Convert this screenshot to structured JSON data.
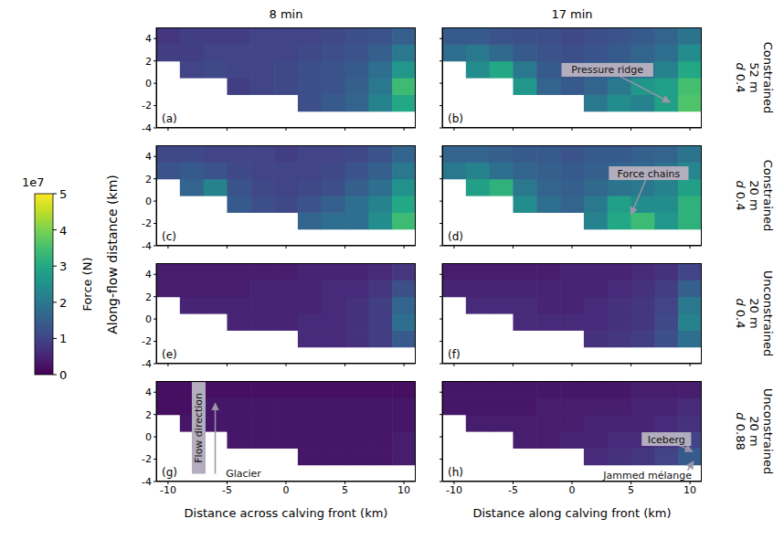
{
  "chart_data": {
    "type": "heatmap",
    "columns": [
      "8 min",
      "17 min"
    ],
    "row_titles": [
      [
        "Constrained",
        "52 m",
        "d 0.4"
      ],
      [
        "Constrained",
        "20 m",
        "d 0.4"
      ],
      [
        "Unconstrained",
        "20 m",
        "d 0.4"
      ],
      [
        "Unconstrained",
        "20 m",
        "d 0.88"
      ]
    ],
    "y_label": "Along-flow distance (km)",
    "xlim": [
      -11,
      11
    ],
    "xticks": [
      -10,
      -5,
      0,
      5,
      10
    ],
    "ylim": [
      -4,
      5
    ],
    "yticks": [
      -4,
      -2,
      0,
      2,
      4
    ],
    "x_edges": [
      -11,
      -9,
      -7,
      -5,
      -3,
      -1,
      1,
      3,
      5,
      7,
      9,
      11
    ],
    "y_edges": [
      -4,
      -2.5,
      -1,
      0.5,
      2,
      3.5,
      5
    ],
    "colorbar": {
      "label": "Force (N)",
      "offset_label": "1e7",
      "range": [
        0,
        5
      ],
      "ticks": [
        0,
        1,
        2,
        3,
        4,
        5
      ]
    },
    "panels": [
      {
        "label": "(a)",
        "tick_labels": "y",
        "annotations": [],
        "cells": [
          [
            null,
            null,
            null,
            null,
            null,
            null,
            null,
            null,
            null,
            null,
            null
          ],
          [
            null,
            null,
            null,
            null,
            null,
            null,
            1.2,
            1.4,
            1.6,
            2.2,
            3.0
          ],
          [
            null,
            null,
            null,
            0.9,
            1.0,
            1.1,
            1.2,
            1.3,
            1.5,
            2.0,
            3.4
          ],
          [
            null,
            1.0,
            1.1,
            1.0,
            1.0,
            1.1,
            1.2,
            1.3,
            1.4,
            1.8,
            2.6
          ],
          [
            0.9,
            0.9,
            1.0,
            1.0,
            1.0,
            1.0,
            1.1,
            1.2,
            1.3,
            1.5,
            2.0
          ],
          [
            0.8,
            0.9,
            0.9,
            0.9,
            1.0,
            1.0,
            1.0,
            1.1,
            1.2,
            1.3,
            1.5
          ]
        ]
      },
      {
        "label": "(b)",
        "tick_labels": false,
        "annotations": [
          "Pressure ridge"
        ],
        "cells": [
          [
            null,
            null,
            null,
            null,
            null,
            null,
            null,
            null,
            null,
            null,
            null
          ],
          [
            null,
            null,
            null,
            null,
            null,
            null,
            2.0,
            2.4,
            2.2,
            2.8,
            3.6
          ],
          [
            null,
            null,
            null,
            2.6,
            1.6,
            1.4,
            1.6,
            2.0,
            2.6,
            2.8,
            3.5
          ],
          [
            null,
            2.4,
            3.0,
            2.0,
            1.4,
            1.3,
            1.4,
            1.6,
            1.8,
            2.2,
            3.0
          ],
          [
            1.8,
            2.0,
            1.7,
            1.4,
            1.3,
            1.2,
            1.3,
            1.4,
            1.6,
            1.8,
            2.4
          ],
          [
            1.4,
            1.4,
            1.3,
            1.2,
            1.2,
            1.1,
            1.2,
            1.3,
            1.4,
            1.6,
            1.9
          ]
        ]
      },
      {
        "label": "(c)",
        "tick_labels": "y",
        "annotations": [],
        "cells": [
          [
            null,
            null,
            null,
            null,
            null,
            null,
            null,
            null,
            null,
            null,
            null
          ],
          [
            null,
            null,
            null,
            null,
            null,
            null,
            1.6,
            1.8,
            1.8,
            2.4,
            3.4
          ],
          [
            null,
            null,
            null,
            1.4,
            1.2,
            1.1,
            1.3,
            1.5,
            1.8,
            2.2,
            3.0
          ],
          [
            null,
            1.6,
            2.2,
            1.3,
            1.1,
            1.0,
            1.1,
            1.2,
            1.5,
            1.8,
            2.5
          ],
          [
            1.3,
            1.4,
            1.3,
            1.1,
            1.0,
            1.0,
            1.0,
            1.1,
            1.3,
            1.5,
            2.0
          ],
          [
            1.1,
            1.1,
            1.0,
            1.0,
            1.0,
            0.9,
            1.0,
            1.0,
            1.1,
            1.3,
            1.6
          ]
        ]
      },
      {
        "label": "(d)",
        "tick_labels": false,
        "annotations": [
          "Force chains"
        ],
        "cells": [
          [
            null,
            null,
            null,
            null,
            null,
            null,
            null,
            null,
            null,
            null,
            null
          ],
          [
            null,
            null,
            null,
            null,
            null,
            null,
            2.2,
            3.0,
            3.4,
            2.6,
            3.2
          ],
          [
            null,
            null,
            null,
            2.4,
            1.8,
            1.6,
            2.0,
            2.8,
            2.4,
            2.4,
            3.2
          ],
          [
            null,
            2.8,
            3.2,
            2.0,
            1.6,
            1.5,
            1.7,
            1.9,
            2.0,
            2.2,
            2.8
          ],
          [
            2.0,
            2.2,
            1.8,
            1.6,
            1.5,
            1.4,
            1.5,
            1.6,
            1.7,
            1.9,
            2.3
          ],
          [
            1.6,
            1.6,
            1.5,
            1.4,
            1.4,
            1.3,
            1.4,
            1.4,
            1.5,
            1.6,
            1.9
          ]
        ]
      },
      {
        "label": "(e)",
        "tick_labels": "y",
        "annotations": [],
        "cells": [
          [
            null,
            null,
            null,
            null,
            null,
            null,
            null,
            null,
            null,
            null,
            null
          ],
          [
            null,
            null,
            null,
            null,
            null,
            null,
            0.6,
            0.6,
            0.7,
            0.9,
            1.4
          ],
          [
            null,
            null,
            null,
            0.5,
            0.5,
            0.5,
            0.6,
            0.6,
            0.7,
            0.9,
            1.8
          ],
          [
            null,
            0.5,
            0.5,
            0.5,
            0.5,
            0.5,
            0.5,
            0.6,
            0.7,
            0.9,
            1.6
          ],
          [
            0.4,
            0.4,
            0.4,
            0.4,
            0.5,
            0.5,
            0.5,
            0.6,
            0.6,
            0.8,
            1.2
          ],
          [
            0.4,
            0.4,
            0.4,
            0.4,
            0.4,
            0.4,
            0.5,
            0.5,
            0.5,
            0.6,
            0.8
          ]
        ]
      },
      {
        "label": "(f)",
        "tick_labels": false,
        "annotations": [],
        "cells": [
          [
            null,
            null,
            null,
            null,
            null,
            null,
            null,
            null,
            null,
            null,
            null
          ],
          [
            null,
            null,
            null,
            null,
            null,
            null,
            0.7,
            0.8,
            0.9,
            1.2,
            1.8
          ],
          [
            null,
            null,
            null,
            0.6,
            0.6,
            0.6,
            0.6,
            0.7,
            0.8,
            1.1,
            2.2
          ],
          [
            null,
            0.6,
            0.6,
            0.6,
            0.5,
            0.5,
            0.6,
            0.7,
            0.8,
            1.0,
            2.0
          ],
          [
            0.5,
            0.5,
            0.5,
            0.5,
            0.5,
            0.5,
            0.5,
            0.6,
            0.7,
            0.9,
            1.5
          ],
          [
            0.4,
            0.4,
            0.4,
            0.4,
            0.4,
            0.5,
            0.5,
            0.5,
            0.6,
            0.7,
            1.0
          ]
        ]
      },
      {
        "label": "(g)",
        "tick_labels": true,
        "x_label": "Distance across calving front (km)",
        "annotations": [
          "Flow direction",
          "Glacier"
        ],
        "cells": [
          [
            null,
            null,
            null,
            null,
            null,
            null,
            null,
            null,
            null,
            null,
            null
          ],
          [
            null,
            null,
            null,
            null,
            null,
            null,
            0.3,
            0.3,
            0.3,
            0.3,
            0.4
          ],
          [
            null,
            null,
            null,
            0.3,
            0.3,
            0.3,
            0.3,
            0.3,
            0.3,
            0.3,
            0.4
          ],
          [
            null,
            0.3,
            0.3,
            0.3,
            0.3,
            0.3,
            0.3,
            0.3,
            0.3,
            0.3,
            0.3
          ],
          [
            0.2,
            0.2,
            0.3,
            0.3,
            0.3,
            0.3,
            0.3,
            0.3,
            0.3,
            0.3,
            0.3
          ],
          [
            0.2,
            0.2,
            0.2,
            0.2,
            0.2,
            0.2,
            0.2,
            0.2,
            0.2,
            0.2,
            0.2
          ]
        ]
      },
      {
        "label": "(h)",
        "tick_labels": "x",
        "x_label": "Distance along calving front (km)",
        "annotations": [
          "Iceberg",
          "Jammed mélange"
        ],
        "cells": [
          [
            null,
            null,
            null,
            null,
            null,
            null,
            null,
            null,
            null,
            null,
            null
          ],
          [
            null,
            null,
            null,
            null,
            null,
            null,
            0.6,
            0.7,
            0.8,
            1.0,
            1.4
          ],
          [
            null,
            null,
            null,
            0.4,
            0.4,
            0.5,
            0.5,
            0.6,
            0.6,
            0.8,
            1.0
          ],
          [
            null,
            0.4,
            0.4,
            0.4,
            0.4,
            0.4,
            0.5,
            0.5,
            0.5,
            0.6,
            0.7
          ],
          [
            0.3,
            0.3,
            0.3,
            0.3,
            0.4,
            0.4,
            0.4,
            0.4,
            0.5,
            0.5,
            0.6
          ],
          [
            0.3,
            0.3,
            0.3,
            0.3,
            0.3,
            0.3,
            0.3,
            0.3,
            0.4,
            0.4,
            0.4
          ]
        ]
      }
    ]
  }
}
